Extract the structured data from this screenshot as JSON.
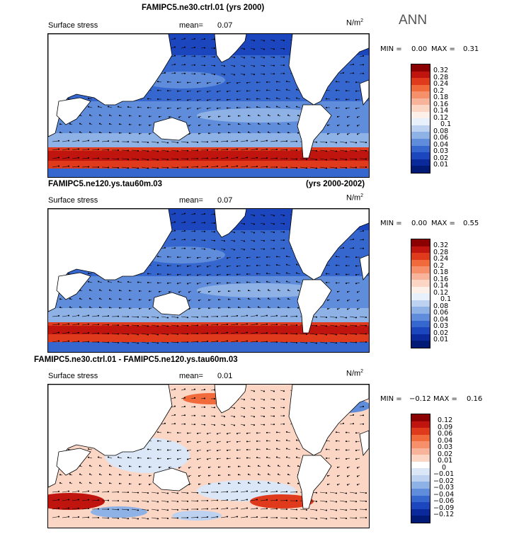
{
  "season": "ANN",
  "units": "N/m",
  "units_sup": "2",
  "panels": [
    {
      "title": "FAMIPC5.ne30.ctrl.01 (yrs 2000)",
      "title_right": "",
      "variable": "Surface stress",
      "mean_label": "mean=",
      "mean_value": "0.07",
      "min_label": "MIN =",
      "min_value": "0.00",
      "max_label": "MAX =",
      "max_value": "0.31",
      "colorbar_levels": [
        "0.32",
        "0.28",
        "0.24",
        "0.2",
        "0.18",
        "0.16",
        "0.14",
        "0.12",
        "0.1",
        "0.08",
        "0.06",
        "0.04",
        "0.03",
        "0.02",
        "0.01"
      ]
    },
    {
      "title": "FAMIPC5.ne120.ys.tau60m.03",
      "title_right": "(yrs 2000-2002)",
      "variable": "Surface stress",
      "mean_label": "mean=",
      "mean_value": "0.07",
      "min_label": "MIN =",
      "min_value": "0.00",
      "max_label": "MAX =",
      "max_value": "0.55",
      "colorbar_levels": [
        "0.32",
        "0.28",
        "0.24",
        "0.2",
        "0.18",
        "0.16",
        "0.14",
        "0.12",
        "0.1",
        "0.08",
        "0.06",
        "0.04",
        "0.03",
        "0.02",
        "0.01"
      ]
    },
    {
      "title": "FAMIPC5.ne30.ctrl.01 - FAMIPC5.ne120.ys.tau60m.03",
      "title_right": "",
      "variable": "Surface stress",
      "mean_label": "mean=",
      "mean_value": "0.01",
      "min_label": "MIN =",
      "min_value": "−0.12",
      "max_label": "MAX =",
      "max_value": "0.16",
      "colorbar_levels": [
        "0.12",
        "0.09",
        "0.06",
        "0.04",
        "0.03",
        "0.02",
        "0.01",
        "0",
        "−0.01",
        "−0.02",
        "−0.03",
        "−0.04",
        "−0.06",
        "−0.09",
        "−0.12"
      ]
    }
  ],
  "colors": {
    "abs_scale": [
      "#8b0000",
      "#c0150f",
      "#e03a1c",
      "#f06a3c",
      "#f5906a",
      "#f8b49a",
      "#fbd6c5",
      "#fdf0e8",
      "#e8f0fb",
      "#bcd2f0",
      "#8fb2e6",
      "#5f8ddb",
      "#3667cf",
      "#1b46bd",
      "#0a2a9c",
      "#001a75"
    ],
    "diff_scale": [
      "#8b0000",
      "#c0150f",
      "#e03a1c",
      "#f06a3c",
      "#f5906a",
      "#f8b49a",
      "#fbd6c5",
      "#ffffff",
      "#dbe7f7",
      "#bcd2f0",
      "#8fb2e6",
      "#5f8ddb",
      "#3667cf",
      "#1b46bd",
      "#0a2a9c",
      "#001a75"
    ]
  }
}
